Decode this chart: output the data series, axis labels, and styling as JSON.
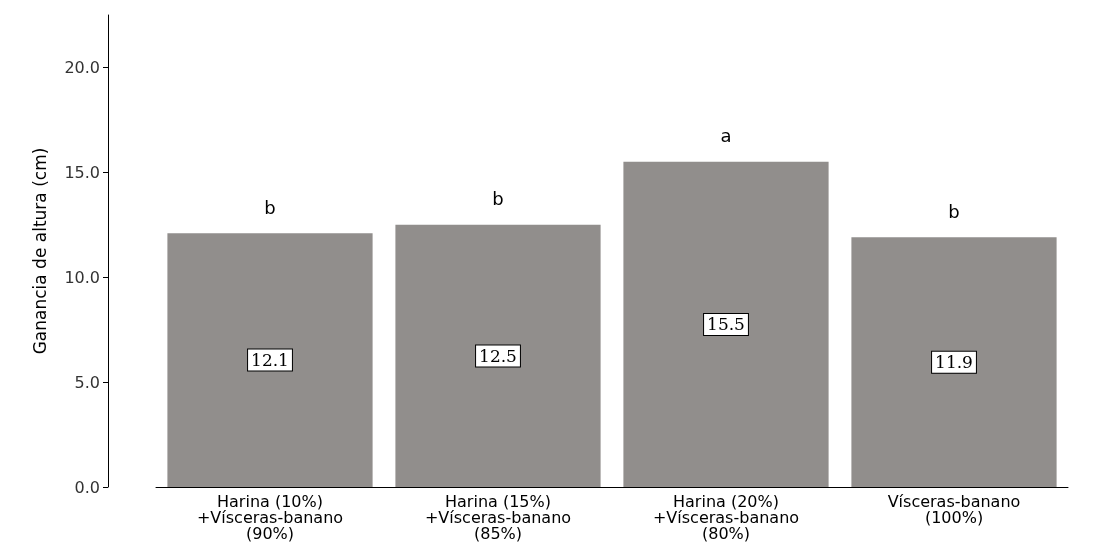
{
  "chart_data": {
    "type": "bar",
    "categories": [
      "Harina (10%)\n+Vísceras-banano\n(90%)",
      "Harina (15%)\n+Vísceras-banano\n(85%)",
      "Harina (20%)\n+Vísceras-banano\n(80%)",
      "Vísceras-banano\n(100%)"
    ],
    "values": [
      12.1,
      12.5,
      15.5,
      11.9
    ],
    "color": "#918e8c",
    "ylabel": "Ganancia de altura (cm)",
    "ylim": [
      0,
      22.5
    ],
    "yticks": [
      {
        "value": 0,
        "label": "0.0"
      },
      {
        "value": 5,
        "label": "5.0"
      },
      {
        "value": 10,
        "label": "10.0"
      },
      {
        "value": 15,
        "label": "15.0"
      },
      {
        "value": 20,
        "label": "20.0"
      }
    ],
    "data_labels": true,
    "grid": false,
    "annotations": [
      "b",
      "b",
      "a",
      "b"
    ]
  }
}
